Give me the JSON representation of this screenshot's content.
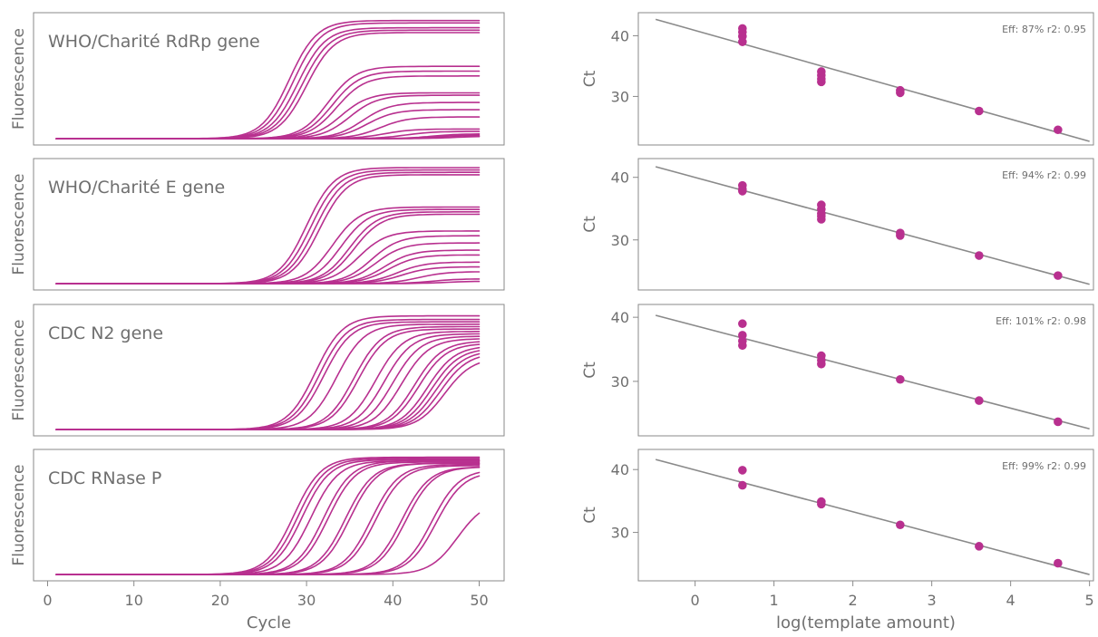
{
  "colors": {
    "series": "#b8308f",
    "fit_line": "#8a8a8a",
    "text": "#6f6f6f",
    "frame": "#8a8a8a"
  },
  "chart_data": [
    {
      "type": "line",
      "panel": "amplification",
      "title": "WHO/Charité RdRp gene",
      "xlabel": "",
      "ylabel": "Fluorescence",
      "xlim": [
        0,
        50
      ],
      "ylim": [
        0,
        1
      ],
      "grid": false,
      "curve_range": [
        1,
        50
      ],
      "ct_values": [
        28.0,
        28.5,
        29.0,
        29.5,
        30.0,
        32.5,
        33.0,
        33.5,
        34.0,
        35.0,
        36.5,
        37.0,
        38.5,
        39.0,
        41.5,
        44.5,
        45.0,
        46.0,
        47.0
      ],
      "plateau_values": [
        0.98,
        0.96,
        0.92,
        0.9,
        0.88,
        0.6,
        0.56,
        0.52,
        0.38,
        0.36,
        0.3,
        0.24,
        0.18,
        0.08,
        0.06,
        0.04,
        0.03,
        0.02,
        0.02
      ]
    },
    {
      "type": "line",
      "panel": "amplification",
      "title": "WHO/Charité E gene",
      "xlabel": "",
      "ylabel": "Fluorescence",
      "xlim": [
        0,
        50
      ],
      "ylim": [
        0,
        1
      ],
      "grid": false,
      "curve_range": [
        1,
        50
      ],
      "ct_values": [
        30.0,
        30.5,
        31.0,
        31.5,
        33.0,
        34.0,
        35.0,
        35.5,
        36.0,
        37.5,
        38.0,
        39.0,
        39.5,
        40.5,
        41.0,
        43.0,
        44.5,
        46.0
      ],
      "plateau_values": [
        0.97,
        0.95,
        0.93,
        0.91,
        0.64,
        0.62,
        0.6,
        0.58,
        0.44,
        0.4,
        0.34,
        0.28,
        0.24,
        0.18,
        0.14,
        0.1,
        0.04,
        0.02
      ]
    },
    {
      "type": "line",
      "panel": "amplification",
      "title": "CDC N2 gene",
      "xlabel": "",
      "ylabel": "Fluorescence",
      "xlim": [
        0,
        50
      ],
      "ylim": [
        0,
        1
      ],
      "grid": false,
      "curve_range": [
        1,
        50
      ],
      "ct_values": [
        31.0,
        31.5,
        32.0,
        33.5,
        35.5,
        36.0,
        38.0,
        39.0,
        40.0,
        41.0,
        42.5,
        43.0,
        44.0,
        44.5,
        45.0,
        45.5,
        46.0
      ],
      "plateau_values": [
        0.95,
        0.92,
        0.9,
        0.88,
        0.86,
        0.84,
        0.82,
        0.8,
        0.78,
        0.76,
        0.74,
        0.72,
        0.7,
        0.68,
        0.66,
        0.64,
        0.6
      ]
    },
    {
      "type": "line",
      "panel": "amplification",
      "title": "CDC RNase P",
      "xlabel": "Cycle",
      "ylabel": "Fluorescence",
      "xlim": [
        0,
        50
      ],
      "ylim": [
        0,
        1
      ],
      "grid": false,
      "curve_range": [
        1,
        50
      ],
      "ct_values": [
        28.5,
        29.0,
        29.5,
        30.5,
        32.0,
        32.5,
        34.5,
        35.0,
        37.5,
        38.0,
        41.0,
        41.5,
        44.5,
        45.0,
        47.5
      ],
      "plateau_values": [
        0.98,
        0.97,
        0.96,
        0.95,
        0.95,
        0.94,
        0.93,
        0.93,
        0.92,
        0.91,
        0.9,
        0.9,
        0.88,
        0.86,
        0.62
      ]
    },
    {
      "type": "scatter",
      "panel": "standard-curve",
      "xlabel": "",
      "ylabel": "Ct",
      "xlim": [
        -0.72,
        5.05
      ],
      "ylim": [
        22.0,
        43.8
      ],
      "yticks": [
        30,
        40
      ],
      "grid": false,
      "annotation": "Eff: 87% r2: 0.95",
      "fit": {
        "x0": -0.5,
        "x1": 5.0,
        "y0": 42.7,
        "y1": 22.6
      },
      "points": [
        {
          "x": 0.6,
          "y": 41.2
        },
        {
          "x": 0.6,
          "y": 40.6
        },
        {
          "x": 0.6,
          "y": 39.9
        },
        {
          "x": 0.6,
          "y": 39.0
        },
        {
          "x": 1.6,
          "y": 34.1
        },
        {
          "x": 1.6,
          "y": 33.5
        },
        {
          "x": 1.6,
          "y": 32.9
        },
        {
          "x": 1.6,
          "y": 32.4
        },
        {
          "x": 2.6,
          "y": 31.0
        },
        {
          "x": 2.6,
          "y": 30.6
        },
        {
          "x": 3.6,
          "y": 27.6
        },
        {
          "x": 4.6,
          "y": 24.5
        }
      ]
    },
    {
      "type": "scatter",
      "panel": "standard-curve",
      "xlabel": "",
      "ylabel": "Ct",
      "xlim": [
        -0.72,
        5.05
      ],
      "ylim": [
        22.0,
        43.0
      ],
      "yticks": [
        30,
        40
      ],
      "grid": false,
      "annotation": "Eff: 94% r2: 0.99",
      "fit": {
        "x0": -0.5,
        "x1": 5.0,
        "y0": 41.7,
        "y1": 22.9
      },
      "points": [
        {
          "x": 0.6,
          "y": 38.7
        },
        {
          "x": 0.6,
          "y": 38.1
        },
        {
          "x": 0.6,
          "y": 37.8
        },
        {
          "x": 1.6,
          "y": 35.6
        },
        {
          "x": 1.6,
          "y": 34.9
        },
        {
          "x": 1.6,
          "y": 34.2
        },
        {
          "x": 1.6,
          "y": 33.8
        },
        {
          "x": 1.6,
          "y": 33.3
        },
        {
          "x": 2.6,
          "y": 31.1
        },
        {
          "x": 2.6,
          "y": 30.7
        },
        {
          "x": 3.6,
          "y": 27.5
        },
        {
          "x": 4.6,
          "y": 24.3
        }
      ]
    },
    {
      "type": "scatter",
      "panel": "standard-curve",
      "xlabel": "",
      "ylabel": "Ct",
      "xlim": [
        -0.72,
        5.05
      ],
      "ylim": [
        21.5,
        42.0
      ],
      "yticks": [
        30,
        40
      ],
      "grid": false,
      "annotation": "Eff: 101% r2: 0.98",
      "fit": {
        "x0": -0.5,
        "x1": 5.0,
        "y0": 40.3,
        "y1": 22.6
      },
      "points": [
        {
          "x": 0.6,
          "y": 39.0
        },
        {
          "x": 0.6,
          "y": 37.2
        },
        {
          "x": 0.6,
          "y": 36.3
        },
        {
          "x": 0.6,
          "y": 35.6
        },
        {
          "x": 1.6,
          "y": 34.0
        },
        {
          "x": 1.6,
          "y": 33.3
        },
        {
          "x": 1.6,
          "y": 32.7
        },
        {
          "x": 2.6,
          "y": 30.3
        },
        {
          "x": 3.6,
          "y": 27.0
        },
        {
          "x": 4.6,
          "y": 23.7
        }
      ]
    },
    {
      "type": "scatter",
      "panel": "standard-curve",
      "xlabel": "log(template amount)",
      "ylabel": "Ct",
      "xlim": [
        -0.72,
        5.05
      ],
      "ylim": [
        22.3,
        43.2
      ],
      "yticks": [
        30,
        40
      ],
      "xticks": [
        0,
        1,
        2,
        3,
        4,
        5
      ],
      "grid": false,
      "annotation": "Eff: 99% r2: 0.99",
      "fit": {
        "x0": -0.5,
        "x1": 5.0,
        "y0": 41.6,
        "y1": 23.3
      },
      "points": [
        {
          "x": 0.6,
          "y": 39.9
        },
        {
          "x": 0.6,
          "y": 37.5
        },
        {
          "x": 1.6,
          "y": 34.9
        },
        {
          "x": 1.6,
          "y": 34.5
        },
        {
          "x": 2.6,
          "y": 31.2
        },
        {
          "x": 3.6,
          "y": 27.8
        },
        {
          "x": 4.6,
          "y": 25.1
        }
      ]
    }
  ]
}
